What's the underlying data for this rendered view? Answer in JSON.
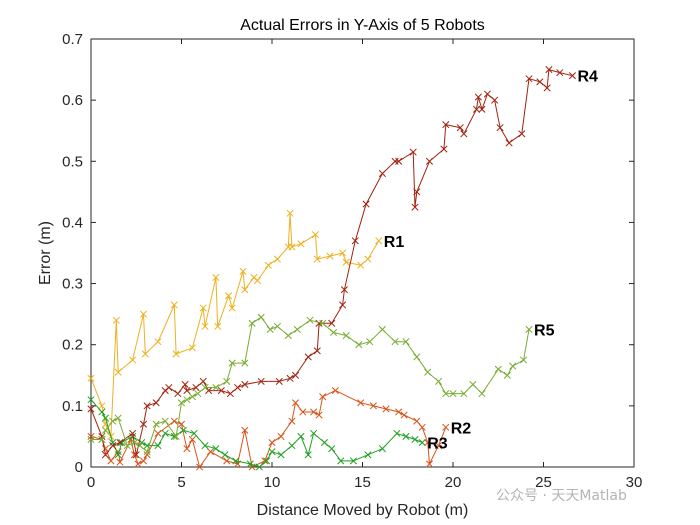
{
  "chart_data": {
    "type": "line",
    "title": "Actual Errors in Y-Axis of 5 Robots",
    "xlabel": "Distance Moved by Robot (m)",
    "ylabel": "Error (m)",
    "xlim": [
      0,
      30
    ],
    "ylim": [
      0,
      0.7
    ],
    "xticks": [
      "0",
      "5",
      "10",
      "15",
      "20",
      "25",
      "30"
    ],
    "yticks": [
      "0",
      "0.1",
      "0.2",
      "0.3",
      "0.4",
      "0.5",
      "0.6",
      "0.7"
    ],
    "grid": false,
    "series": [
      {
        "name": "R1",
        "color": "#EDB120",
        "marker": "x",
        "points": [
          [
            0.0,
            0.145
          ],
          [
            0.6,
            0.1
          ],
          [
            0.8,
            0.07
          ],
          [
            1.1,
            0.05
          ],
          [
            1.4,
            0.24
          ],
          [
            1.5,
            0.155
          ],
          [
            2.3,
            0.175
          ],
          [
            2.9,
            0.25
          ],
          [
            3.0,
            0.185
          ],
          [
            3.7,
            0.205
          ],
          [
            4.6,
            0.265
          ],
          [
            4.7,
            0.185
          ],
          [
            5.6,
            0.195
          ],
          [
            6.2,
            0.26
          ],
          [
            6.3,
            0.23
          ],
          [
            6.9,
            0.31
          ],
          [
            7.0,
            0.23
          ],
          [
            7.6,
            0.28
          ],
          [
            7.8,
            0.26
          ],
          [
            8.4,
            0.32
          ],
          [
            8.5,
            0.29
          ],
          [
            9.0,
            0.31
          ],
          [
            9.2,
            0.305
          ],
          [
            9.8,
            0.33
          ],
          [
            10.3,
            0.34
          ],
          [
            10.9,
            0.36
          ],
          [
            11.0,
            0.415
          ],
          [
            11.1,
            0.36
          ],
          [
            11.6,
            0.365
          ],
          [
            12.4,
            0.38
          ],
          [
            12.5,
            0.34
          ],
          [
            13.2,
            0.345
          ],
          [
            13.9,
            0.35
          ],
          [
            14.1,
            0.335
          ],
          [
            14.9,
            0.33
          ],
          [
            15.3,
            0.34
          ],
          [
            15.9,
            0.37
          ]
        ],
        "label": "R1"
      },
      {
        "name": "R2",
        "color": "#D95319",
        "marker": "x",
        "points": [
          [
            0.0,
            0.05
          ],
          [
            0.6,
            0.045
          ],
          [
            0.8,
            0.03
          ],
          [
            1.1,
            0.01
          ],
          [
            1.5,
            0.025
          ],
          [
            1.6,
            0.008
          ],
          [
            2.2,
            0.045
          ],
          [
            2.4,
            0.02
          ],
          [
            2.6,
            0.005
          ],
          [
            2.9,
            0.01
          ],
          [
            3.1,
            0.02
          ],
          [
            3.7,
            0.055
          ],
          [
            4.6,
            0.075
          ],
          [
            5.0,
            0.07
          ],
          [
            5.3,
            0.03
          ],
          [
            5.6,
            0.045
          ],
          [
            6.0,
            0.0
          ],
          [
            6.6,
            0.025
          ],
          [
            7.5,
            0.01
          ],
          [
            8.1,
            0.005
          ],
          [
            8.5,
            0.06
          ],
          [
            8.9,
            0.0
          ],
          [
            9.6,
            0.01
          ],
          [
            10.0,
            0.04
          ],
          [
            10.5,
            0.05
          ],
          [
            11.1,
            0.075
          ],
          [
            11.3,
            0.105
          ],
          [
            11.7,
            0.09
          ],
          [
            12.3,
            0.09
          ],
          [
            12.6,
            0.085
          ],
          [
            12.8,
            0.115
          ],
          [
            13.5,
            0.125
          ],
          [
            14.9,
            0.105
          ],
          [
            15.6,
            0.1
          ],
          [
            16.3,
            0.095
          ],
          [
            17.0,
            0.09
          ],
          [
            17.3,
            0.085
          ],
          [
            18.0,
            0.075
          ],
          [
            18.3,
            0.065
          ],
          [
            18.6,
            0.04
          ],
          [
            18.7,
            0.005
          ],
          [
            19.2,
            0.035
          ],
          [
            19.6,
            0.065
          ]
        ],
        "label": "R2"
      },
      {
        "name": "R3",
        "color": "#1FA01F",
        "marker": "x",
        "points": [
          [
            0.0,
            0.11
          ],
          [
            0.6,
            0.09
          ],
          [
            0.8,
            0.08
          ],
          [
            1.2,
            0.04
          ],
          [
            1.5,
            0.02
          ],
          [
            1.7,
            0.04
          ],
          [
            2.3,
            0.05
          ],
          [
            2.8,
            0.04
          ],
          [
            3.1,
            0.035
          ],
          [
            3.7,
            0.035
          ],
          [
            4.1,
            0.055
          ],
          [
            4.6,
            0.05
          ],
          [
            5.1,
            0.06
          ],
          [
            5.7,
            0.055
          ],
          [
            6.3,
            0.035
          ],
          [
            6.9,
            0.03
          ],
          [
            7.4,
            0.02
          ],
          [
            8.0,
            0.01
          ],
          [
            8.8,
            0.005
          ],
          [
            9.3,
            0.0
          ],
          [
            9.7,
            0.01
          ],
          [
            10.0,
            0.025
          ],
          [
            10.5,
            0.02
          ],
          [
            11.1,
            0.035
          ],
          [
            11.6,
            0.05
          ],
          [
            12.0,
            0.02
          ],
          [
            12.3,
            0.055
          ],
          [
            12.9,
            0.04
          ],
          [
            13.3,
            0.03
          ],
          [
            13.8,
            0.01
          ],
          [
            14.5,
            0.01
          ],
          [
            15.3,
            0.02
          ],
          [
            16.1,
            0.03
          ],
          [
            16.9,
            0.055
          ],
          [
            17.4,
            0.05
          ],
          [
            17.9,
            0.045
          ],
          [
            18.3,
            0.04
          ]
        ],
        "label": "R3"
      },
      {
        "name": "R4",
        "color": "#A2220F",
        "marker": "x",
        "points": [
          [
            0.0,
            0.095
          ],
          [
            0.6,
            0.05
          ],
          [
            0.8,
            0.02
          ],
          [
            1.2,
            0.035
          ],
          [
            1.6,
            0.04
          ],
          [
            2.3,
            0.055
          ],
          [
            2.5,
            0.02
          ],
          [
            2.9,
            0.07
          ],
          [
            3.1,
            0.1
          ],
          [
            3.6,
            0.105
          ],
          [
            4.1,
            0.125
          ],
          [
            4.3,
            0.13
          ],
          [
            4.8,
            0.12
          ],
          [
            5.2,
            0.135
          ],
          [
            5.3,
            0.125
          ],
          [
            5.8,
            0.13
          ],
          [
            6.2,
            0.14
          ],
          [
            6.5,
            0.125
          ],
          [
            7.2,
            0.125
          ],
          [
            7.7,
            0.12
          ],
          [
            8.1,
            0.13
          ],
          [
            8.5,
            0.135
          ],
          [
            9.4,
            0.14
          ],
          [
            10.4,
            0.14
          ],
          [
            11.0,
            0.145
          ],
          [
            11.3,
            0.15
          ],
          [
            12.0,
            0.18
          ],
          [
            12.5,
            0.19
          ],
          [
            12.6,
            0.235
          ],
          [
            13.3,
            0.235
          ],
          [
            13.9,
            0.265
          ],
          [
            14.0,
            0.29
          ],
          [
            14.6,
            0.37
          ],
          [
            15.2,
            0.43
          ],
          [
            16.1,
            0.48
          ],
          [
            16.8,
            0.5
          ],
          [
            17.0,
            0.5
          ],
          [
            17.8,
            0.515
          ],
          [
            17.9,
            0.425
          ],
          [
            18.0,
            0.45
          ],
          [
            18.7,
            0.5
          ],
          [
            19.5,
            0.52
          ],
          [
            19.6,
            0.56
          ],
          [
            20.4,
            0.555
          ],
          [
            20.6,
            0.545
          ],
          [
            21.3,
            0.585
          ],
          [
            21.4,
            0.605
          ],
          [
            21.6,
            0.585
          ],
          [
            21.9,
            0.61
          ],
          [
            22.3,
            0.6
          ],
          [
            22.6,
            0.555
          ],
          [
            23.1,
            0.53
          ],
          [
            23.8,
            0.545
          ],
          [
            24.2,
            0.635
          ],
          [
            24.8,
            0.63
          ],
          [
            25.2,
            0.62
          ],
          [
            25.3,
            0.65
          ],
          [
            25.9,
            0.645
          ],
          [
            26.6,
            0.64
          ]
        ],
        "label": "R4"
      },
      {
        "name": "R5",
        "color": "#77AC30",
        "marker": "x",
        "points": [
          [
            0.0,
            0.045
          ],
          [
            0.6,
            0.045
          ],
          [
            0.8,
            0.06
          ],
          [
            1.2,
            0.075
          ],
          [
            1.5,
            0.08
          ],
          [
            2.0,
            0.035
          ],
          [
            2.4,
            0.04
          ],
          [
            2.7,
            0.035
          ],
          [
            3.1,
            0.025
          ],
          [
            3.6,
            0.07
          ],
          [
            4.1,
            0.075
          ],
          [
            4.7,
            0.05
          ],
          [
            5.0,
            0.105
          ],
          [
            5.3,
            0.11
          ],
          [
            5.6,
            0.115
          ],
          [
            5.9,
            0.12
          ],
          [
            6.3,
            0.13
          ],
          [
            6.9,
            0.13
          ],
          [
            7.5,
            0.14
          ],
          [
            7.8,
            0.17
          ],
          [
            8.5,
            0.17
          ],
          [
            8.9,
            0.235
          ],
          [
            9.4,
            0.245
          ],
          [
            9.9,
            0.225
          ],
          [
            10.3,
            0.23
          ],
          [
            10.9,
            0.215
          ],
          [
            11.4,
            0.225
          ],
          [
            12.1,
            0.24
          ],
          [
            12.8,
            0.235
          ],
          [
            13.4,
            0.22
          ],
          [
            14.1,
            0.215
          ],
          [
            14.8,
            0.2
          ],
          [
            15.4,
            0.205
          ],
          [
            16.1,
            0.225
          ],
          [
            16.8,
            0.205
          ],
          [
            17.4,
            0.205
          ],
          [
            18.0,
            0.18
          ],
          [
            18.6,
            0.155
          ],
          [
            19.2,
            0.14
          ],
          [
            19.6,
            0.12
          ],
          [
            20.0,
            0.12
          ],
          [
            20.6,
            0.12
          ],
          [
            21.1,
            0.135
          ],
          [
            21.6,
            0.12
          ],
          [
            22.5,
            0.16
          ],
          [
            23.0,
            0.15
          ],
          [
            23.3,
            0.165
          ],
          [
            23.9,
            0.175
          ],
          [
            24.2,
            0.225
          ]
        ],
        "label": "R5"
      }
    ]
  },
  "watermark": "公众号 · 天天Matlab"
}
